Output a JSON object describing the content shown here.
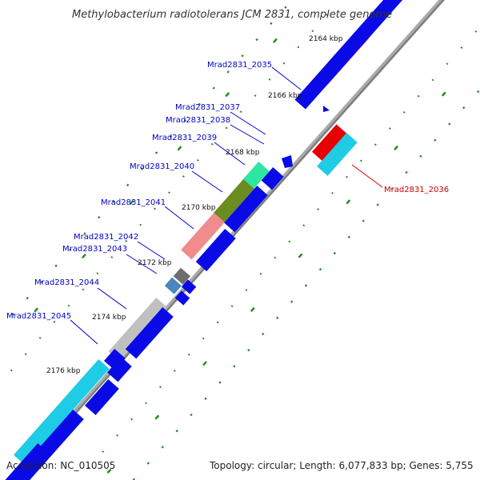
{
  "title": "Methylobacterium radiotolerans JCM 2831, complete genome",
  "accession": "Accession: NC_010505",
  "topology": "Topology: circular; Length: 6,077,833 bp; Genes: 5,755",
  "colors": {
    "cds": "#0a0ae6",
    "label_blue": "#0000cc",
    "label_red": "#cc0000",
    "backbone": "#8c8c8c",
    "tick": "#1a8a1a"
  },
  "kbp_labels": [
    "2164 kbp",
    "2166 kbp",
    "2168 kbp",
    "2170 kbp",
    "2172 kbp",
    "2174 kbp",
    "2176 kbp"
  ],
  "gene_labels": [
    {
      "text": "Mrad2831_2035",
      "color": "label_blue"
    },
    {
      "text": "Mrad2831_2036",
      "color": "label_red"
    },
    {
      "text": "Mrad2831_2037",
      "color": "label_blue"
    },
    {
      "text": "Mrad2831_2038",
      "color": "label_blue"
    },
    {
      "text": "Mrad2831_2039",
      "color": "label_blue"
    },
    {
      "text": "Mrad2831_2040",
      "color": "label_blue"
    },
    {
      "text": "Mrad2831_2041",
      "color": "label_blue"
    },
    {
      "text": "Mrad2831_2042",
      "color": "label_blue"
    },
    {
      "text": "Mrad2831_2043",
      "color": "label_blue"
    },
    {
      "text": "Mrad2831_2044",
      "color": "label_blue"
    },
    {
      "text": "Mrad2831_2045",
      "color": "label_blue"
    }
  ],
  "feature_colors": {
    "magenta": "#e6148c",
    "red": "#e60000",
    "cyan": "#1ecce6",
    "green": "#2ee6a0",
    "olive": "#6b8c1e",
    "salmon": "#f08c8c",
    "darkgray": "#6e6e6e",
    "steelblue": "#4a86c0",
    "lightgray": "#c0c0c0"
  }
}
